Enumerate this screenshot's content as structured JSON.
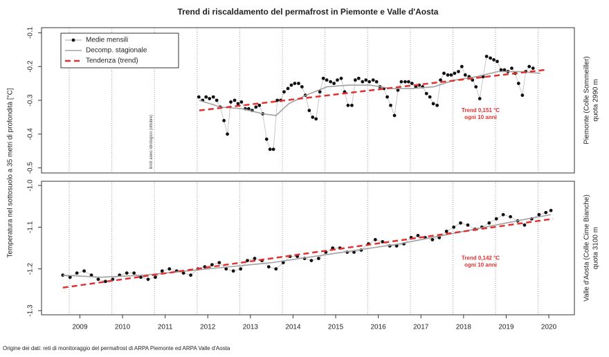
{
  "title": "Trend di riscaldamento del permafrost in Piemonte e Valle d'Aosta",
  "ylabel": "Temperatura nel sottosuolo a 35 metri di profondità [°C]",
  "source": "Origine dei dati: reti di monitoraggio del permafrost di ARPA Piemonte ed ARPA Valle d'Aosta",
  "year_bounds_label": "limiti anno idrologico (ottobre)",
  "year_bounds": [
    2008.75,
    2009.75,
    2010.75,
    2011.75,
    2012.75,
    2013.75,
    2014.75,
    2015.75,
    2016.75,
    2017.75,
    2018.75,
    2019.75
  ],
  "chart_data": [
    {
      "type": "line",
      "side_label": [
        "Piemonte (Colle Sommeiller)",
        "quota 2990 m"
      ],
      "annotation": [
        "Trend 0,151 °C",
        "ogni 10 anni"
      ],
      "xlim": [
        2008.1,
        2020.6
      ],
      "ylim": [
        -0.515,
        -0.085
      ],
      "yticks": [
        -0.1,
        -0.2,
        -0.3,
        -0.4,
        -0.5
      ],
      "legend": "top-left",
      "series": [
        {
          "name": "Medie mensili",
          "color": "#111111",
          "markers": true,
          "x": [
            2011.79,
            2011.88,
            2011.96,
            2012.04,
            2012.13,
            2012.21,
            2012.29,
            2012.38,
            2012.46,
            2012.54,
            2012.63,
            2012.71,
            2012.79,
            2012.88,
            2012.96,
            2013.04,
            2013.13,
            2013.21,
            2013.29,
            2013.38,
            2013.46,
            2013.54,
            2013.63,
            2013.71,
            2013.79,
            2013.88,
            2013.96,
            2014.04,
            2014.13,
            2014.21,
            2014.29,
            2014.38,
            2014.46,
            2014.54,
            2014.63,
            2014.71,
            2014.79,
            2014.88,
            2014.96,
            2015.04,
            2015.13,
            2015.21,
            2015.29,
            2015.38,
            2015.46,
            2015.54,
            2015.63,
            2015.71,
            2015.79,
            2015.88,
            2015.96,
            2016.04,
            2016.13,
            2016.21,
            2016.29,
            2016.38,
            2016.46,
            2016.54,
            2016.63,
            2016.71,
            2016.79,
            2016.88,
            2016.96,
            2017.04,
            2017.13,
            2017.21,
            2017.29,
            2017.38,
            2017.46,
            2017.54,
            2017.63,
            2017.71,
            2017.79,
            2017.88,
            2017.96,
            2018.04,
            2018.13,
            2018.21,
            2018.29,
            2018.38,
            2018.46,
            2018.54,
            2018.63,
            2018.71,
            2018.79,
            2018.88,
            2018.96,
            2019.04,
            2019.13,
            2019.21,
            2019.29,
            2019.38,
            2019.46,
            2019.54,
            2019.63
          ],
          "values": [
            -0.29,
            -0.3,
            -0.29,
            -0.295,
            -0.29,
            -0.3,
            -0.32,
            -0.36,
            -0.4,
            -0.305,
            -0.3,
            -0.31,
            -0.305,
            -0.325,
            -0.325,
            -0.33,
            -0.32,
            -0.315,
            -0.34,
            -0.415,
            -0.445,
            -0.445,
            -0.3,
            -0.3,
            -0.275,
            -0.265,
            -0.255,
            -0.25,
            -0.25,
            -0.26,
            -0.285,
            -0.33,
            -0.35,
            -0.355,
            -0.275,
            -0.235,
            -0.24,
            -0.245,
            -0.25,
            -0.24,
            -0.235,
            -0.275,
            -0.315,
            -0.315,
            -0.24,
            -0.235,
            -0.245,
            -0.24,
            -0.245,
            -0.24,
            -0.245,
            -0.26,
            -0.265,
            -0.29,
            -0.315,
            -0.345,
            -0.27,
            -0.245,
            -0.245,
            -0.245,
            -0.25,
            -0.26,
            -0.255,
            -0.26,
            -0.28,
            -0.29,
            -0.31,
            -0.315,
            -0.24,
            -0.22,
            -0.225,
            -0.225,
            -0.22,
            -0.215,
            -0.2,
            -0.225,
            -0.23,
            -0.24,
            -0.26,
            -0.295,
            -0.23,
            -0.17,
            -0.175,
            -0.18,
            -0.185,
            -0.21,
            -0.21,
            -0.215,
            -0.205,
            -0.22,
            -0.25,
            -0.285,
            -0.215,
            -0.2,
            -0.205
          ]
        },
        {
          "name": "Decomp. stagionale",
          "color": "#a0a0a0",
          "x": [
            2011.8,
            2012.3,
            2012.8,
            2013.3,
            2013.6,
            2013.9,
            2014.3,
            2014.8,
            2015.3,
            2015.8,
            2016.3,
            2016.8,
            2017.3,
            2017.8,
            2018.3,
            2018.8,
            2019.3,
            2019.8
          ],
          "values": [
            -0.3,
            -0.32,
            -0.325,
            -0.34,
            -0.345,
            -0.31,
            -0.285,
            -0.26,
            -0.255,
            -0.255,
            -0.265,
            -0.265,
            -0.26,
            -0.24,
            -0.23,
            -0.215,
            -0.215,
            -0.22
          ]
        },
        {
          "name": "Tendenza (trend)",
          "color": "#e03030",
          "dash": true,
          "x": [
            2011.8,
            2019.9
          ],
          "values": [
            -0.33,
            -0.21
          ]
        }
      ]
    },
    {
      "type": "line",
      "side_label": [
        "Valle d'Aosta (Colle Cime Bianche)",
        "quota 3100 m"
      ],
      "annotation": [
        "Trend 0,142 °C",
        "ogni 10 anni"
      ],
      "xlim": [
        2008.1,
        2020.6
      ],
      "ylim": [
        -1.31,
        -0.99
      ],
      "yticks": [
        {
          "value": -1,
          "label": "-1.0"
        },
        -1.1,
        -1.2,
        -1.3
      ],
      "xticks": [
        2009,
        2010,
        2011,
        2012,
        2013,
        2014,
        2015,
        2016,
        2017,
        2018,
        2019,
        2020
      ],
      "series": [
        {
          "color": "#111111",
          "markers": true,
          "x": [
            2008.6,
            2008.77,
            2008.93,
            2009.1,
            2009.27,
            2009.43,
            2009.6,
            2009.77,
            2009.93,
            2010.1,
            2010.27,
            2010.43,
            2010.6,
            2010.77,
            2010.93,
            2011.1,
            2011.27,
            2011.43,
            2011.6,
            2011.77,
            2011.93,
            2012.1,
            2012.27,
            2012.43,
            2012.6,
            2012.77,
            2012.93,
            2013.1,
            2013.27,
            2013.43,
            2013.6,
            2013.77,
            2013.93,
            2014.1,
            2014.27,
            2014.43,
            2014.6,
            2014.77,
            2014.93,
            2015.1,
            2015.27,
            2015.43,
            2015.6,
            2015.77,
            2015.93,
            2016.1,
            2016.27,
            2016.43,
            2016.6,
            2016.77,
            2016.93,
            2017.1,
            2017.27,
            2017.43,
            2017.6,
            2017.77,
            2017.93,
            2018.1,
            2018.27,
            2018.43,
            2018.6,
            2018.77,
            2018.93,
            2019.1,
            2019.27,
            2019.43,
            2019.6,
            2019.77,
            2019.93,
            2020.05
          ],
          "values": [
            -1.215,
            -1.22,
            -1.21,
            -1.205,
            -1.215,
            -1.225,
            -1.23,
            -1.225,
            -1.215,
            -1.21,
            -1.21,
            -1.22,
            -1.225,
            -1.22,
            -1.205,
            -1.2,
            -1.205,
            -1.21,
            -1.215,
            -1.2,
            -1.195,
            -1.19,
            -1.185,
            -1.2,
            -1.205,
            -1.2,
            -1.18,
            -1.175,
            -1.18,
            -1.195,
            -1.2,
            -1.185,
            -1.17,
            -1.17,
            -1.175,
            -1.18,
            -1.175,
            -1.16,
            -1.15,
            -1.15,
            -1.16,
            -1.16,
            -1.155,
            -1.14,
            -1.13,
            -1.135,
            -1.145,
            -1.145,
            -1.14,
            -1.125,
            -1.12,
            -1.125,
            -1.13,
            -1.125,
            -1.11,
            -1.1,
            -1.09,
            -1.095,
            -1.105,
            -1.1,
            -1.09,
            -1.08,
            -1.07,
            -1.075,
            -1.085,
            -1.095,
            -1.08,
            -1.07,
            -1.065,
            -1.06
          ]
        },
        {
          "color": "#a0a0a0",
          "x": [
            2008.6,
            2009.5,
            2010.5,
            2011.5,
            2012.5,
            2013.5,
            2014.5,
            2015.5,
            2016.5,
            2017.5,
            2018.5,
            2019.5,
            2020.05
          ],
          "values": [
            -1.215,
            -1.22,
            -1.215,
            -1.205,
            -1.195,
            -1.185,
            -1.17,
            -1.155,
            -1.14,
            -1.12,
            -1.1,
            -1.08,
            -1.07
          ]
        },
        {
          "color": "#e03030",
          "dash": true,
          "x": [
            2008.6,
            2020.1
          ],
          "values": [
            -1.245,
            -1.08
          ]
        }
      ]
    }
  ]
}
